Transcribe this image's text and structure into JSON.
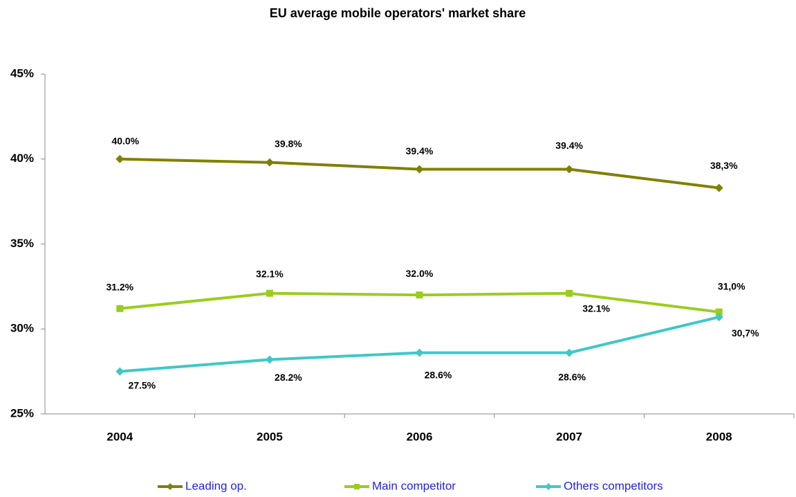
{
  "chart_data": {
    "type": "line",
    "title": "EU average mobile operators' market share",
    "categories": [
      "2004",
      "2005",
      "2006",
      "2007",
      "2008"
    ],
    "series": [
      {
        "name": "Leading op.",
        "color": "#808000",
        "marker": "diamond",
        "values": [
          40.0,
          39.8,
          39.4,
          39.4,
          38.3
        ],
        "value_labels": [
          "40.0%",
          "39.8%",
          "39.4%",
          "39.4%",
          "38,3%"
        ]
      },
      {
        "name": "Main competitor",
        "color": "#9acd1c",
        "marker": "square",
        "values": [
          31.2,
          32.1,
          32.0,
          32.1,
          31.0
        ],
        "value_labels": [
          "31.2%",
          "32.1%",
          "32.0%",
          "32.1%",
          "31,0%"
        ]
      },
      {
        "name": "Others competitors",
        "color": "#3ec8c8",
        "marker": "diamond",
        "values": [
          27.5,
          28.2,
          28.6,
          28.6,
          30.7
        ],
        "value_labels": [
          "27.5%",
          "28.2%",
          "28.6%",
          "28.6%",
          "30,7%"
        ]
      }
    ],
    "ylim": [
      25,
      45
    ],
    "yticks": [
      {
        "value": 25,
        "label": "25%"
      },
      {
        "value": 30,
        "label": "30%"
      },
      {
        "value": 35,
        "label": "35%"
      },
      {
        "value": 40,
        "label": "40%"
      },
      {
        "value": 45,
        "label": "45%"
      }
    ],
    "legend": "bottom"
  }
}
